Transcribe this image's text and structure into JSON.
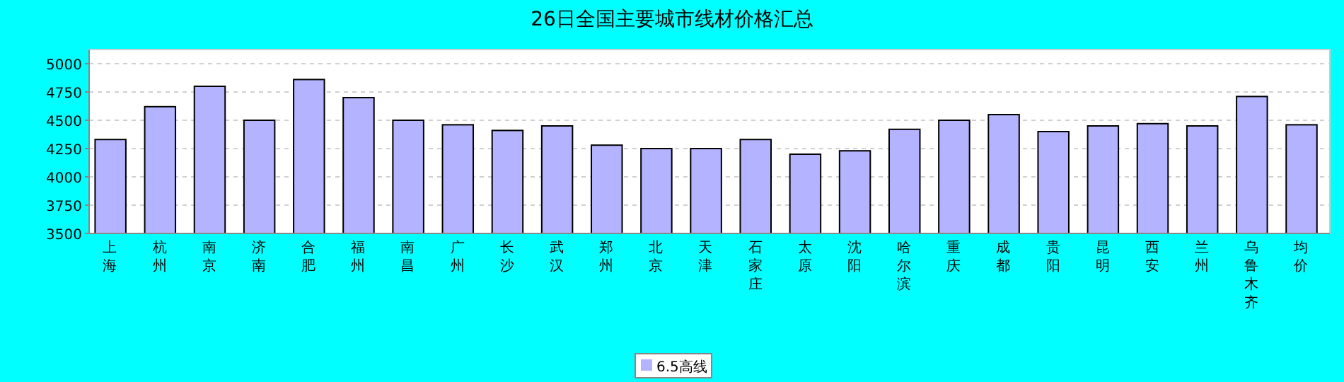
{
  "chart_data": {
    "type": "bar",
    "title": "26日全国主要城市线材价格汇总",
    "categories": [
      "上海",
      "杭州",
      "南京",
      "济南",
      "合肥",
      "福州",
      "南昌",
      "广州",
      "长沙",
      "武汉",
      "郑州",
      "北京",
      "天津",
      "石家庄",
      "太原",
      "沈阳",
      "哈尔滨",
      "重庆",
      "成都",
      "贵阳",
      "昆明",
      "西安",
      "兰州",
      "乌鲁木齐",
      "均价"
    ],
    "series": [
      {
        "name": "6.5高线",
        "color": "#b3b3ff",
        "values": [
          4330,
          4620,
          4800,
          4500,
          4860,
          4700,
          4500,
          4460,
          4410,
          4450,
          4280,
          4250,
          4250,
          4330,
          4200,
          4230,
          4420,
          4500,
          4550,
          4400,
          4450,
          4470,
          4450,
          4710,
          4460
        ]
      }
    ],
    "ylim": [
      3500,
      5125
    ],
    "yticks": [
      3500,
      3750,
      4000,
      4250,
      4500,
      4750,
      5000
    ],
    "grid": "y",
    "legend": "bottom"
  }
}
